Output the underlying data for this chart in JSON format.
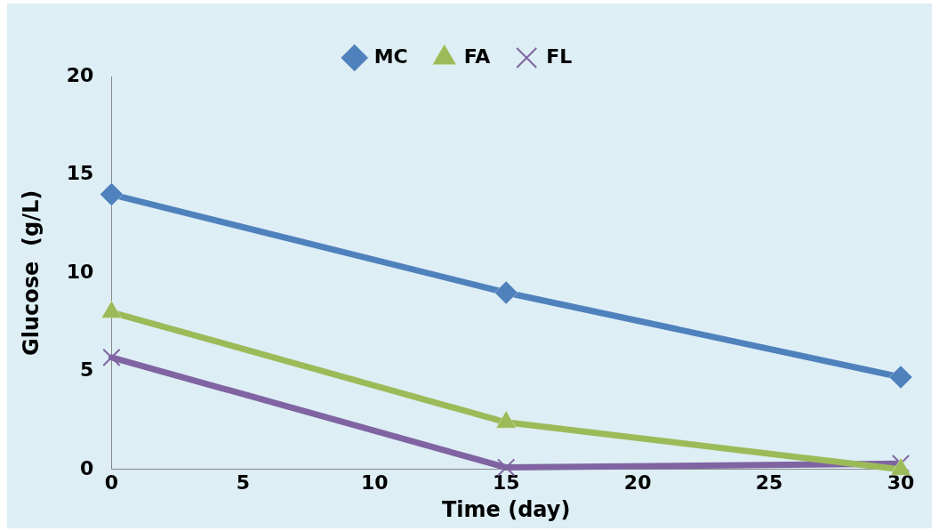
{
  "chart_data": {
    "type": "line",
    "xlabel": "Time (day)",
    "ylabel": "Glucose  (g/L)",
    "x": [
      0,
      15,
      30
    ],
    "series": [
      {
        "name": "MC",
        "color": "#4f81bd",
        "marker": "diamond",
        "values": [
          14.0,
          9.0,
          4.7
        ]
      },
      {
        "name": "FA",
        "color": "#9bbb59",
        "marker": "triangle",
        "values": [
          8.0,
          2.4,
          0.0
        ]
      },
      {
        "name": "FL",
        "color": "#8064a2",
        "marker": "cross",
        "values": [
          5.7,
          0.1,
          0.3
        ]
      }
    ],
    "xlim": [
      0,
      30
    ],
    "xticks": [
      0,
      5,
      10,
      15,
      20,
      25,
      30
    ],
    "ylim": [
      0,
      20
    ],
    "yticks": [
      0,
      5,
      10,
      15,
      20
    ],
    "grid": false,
    "legend": "top"
  }
}
